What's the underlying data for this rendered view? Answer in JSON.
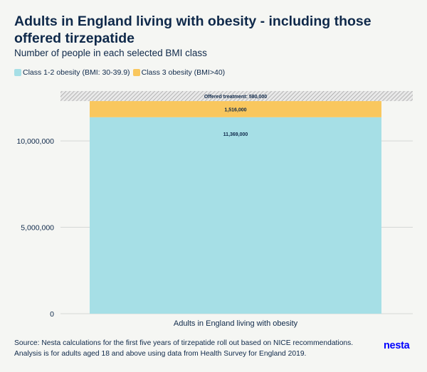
{
  "header": {
    "title": "Adults in England living with obesity - including those offered tirzepatide",
    "subtitle": "Number of people in each selected BMI class"
  },
  "legend": {
    "items": [
      {
        "label": "Class 1-2 obesity (BMI: 30-39.9)",
        "color": "#a6dfe6"
      },
      {
        "label": "Class 3 obesity (BMI>40)",
        "color": "#f9c75e"
      }
    ]
  },
  "chart_data": {
    "type": "bar",
    "stacked": true,
    "categories": [
      "Adults in England living with obesity"
    ],
    "series": [
      {
        "name": "Class 1-2 obesity (BMI: 30-39.9)",
        "values": [
          11369000
        ],
        "color": "#a6dfe6",
        "label": "11,369,000"
      },
      {
        "name": "Class 3 obesity (BMI>40)",
        "values": [
          1516000
        ],
        "color": "#f9c75e",
        "label": "1,516,000"
      }
    ],
    "annotation": {
      "text": "Offered treatment: 580,000",
      "value": 580000,
      "pattern": "diagonal hatch"
    },
    "ylim": [
      0,
      12885000
    ],
    "yticks": [
      {
        "value": 0,
        "label": "0"
      },
      {
        "value": 5000000,
        "label": "5,000,000"
      },
      {
        "value": 10000000,
        "label": "10,000,000"
      }
    ],
    "grid": true
  },
  "footer": {
    "source_line1": "Source: Nesta calculations for the first five years of tirzepatide roll out based on NICE recommendations.",
    "source_line2": "Analysis is for adults aged 18 and above using data from Health Survey for England 2019.",
    "logo": "nesta"
  }
}
